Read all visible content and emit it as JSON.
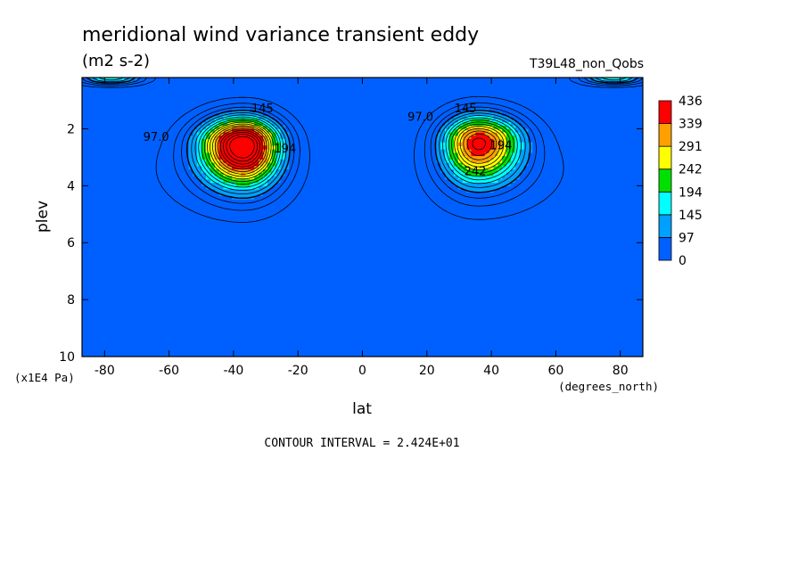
{
  "chart_data": {
    "type": "contour",
    "title": "meridional wind variance transient eddy",
    "units": "(m2 s-2)",
    "run_label": "T39L48_non_Qobs",
    "xlabel": "lat",
    "xunits": "(degrees_north)",
    "ylabel": "plev",
    "yunits": "(x1E4 Pa)",
    "xlim": [
      -87,
      87
    ],
    "ylim": [
      0.2,
      10
    ],
    "y_inverted": true,
    "x_ticks": [
      -80,
      -60,
      -40,
      -20,
      0,
      20,
      40,
      60,
      80
    ],
    "x_tick_labels": [
      "-80",
      "-60",
      "-40",
      "-20",
      "0",
      "20",
      "40",
      "60",
      "80"
    ],
    "y_ticks": [
      2,
      4,
      6,
      8,
      10
    ],
    "y_tick_labels": [
      "2",
      "4",
      "6",
      "8",
      "10"
    ],
    "contour_interval_text": "CONTOUR INTERVAL = 2.424E+01",
    "colorbar": {
      "levels": [
        0,
        97,
        145,
        194,
        242,
        291,
        339,
        436
      ],
      "labels": [
        "0",
        "97",
        "145",
        "194",
        "242",
        "291",
        "339",
        "436"
      ],
      "colors": [
        "#0060ff",
        "#00a0ff",
        "#00ffff",
        "#00e000",
        "#ffff00",
        "#ffa000",
        "#ff0000"
      ]
    },
    "contour_labels": [
      {
        "text": "97.0",
        "lat": -64,
        "plev": 2.3
      },
      {
        "text": "145",
        "lat": -31,
        "plev": 1.3
      },
      {
        "text": "194",
        "lat": -24,
        "plev": 2.7
      },
      {
        "text": "97.0",
        "lat": 18,
        "plev": 1.6
      },
      {
        "text": "145",
        "lat": 32,
        "plev": 1.3
      },
      {
        "text": "194",
        "lat": 43,
        "plev": 2.6
      },
      {
        "text": "242",
        "lat": 35,
        "plev": 3.5
      }
    ],
    "jets": [
      {
        "name": "southern",
        "lat": -37,
        "plev": 2.55,
        "max": 436
      },
      {
        "name": "northern",
        "lat": 36,
        "plev": 2.45,
        "max": 339
      }
    ]
  }
}
